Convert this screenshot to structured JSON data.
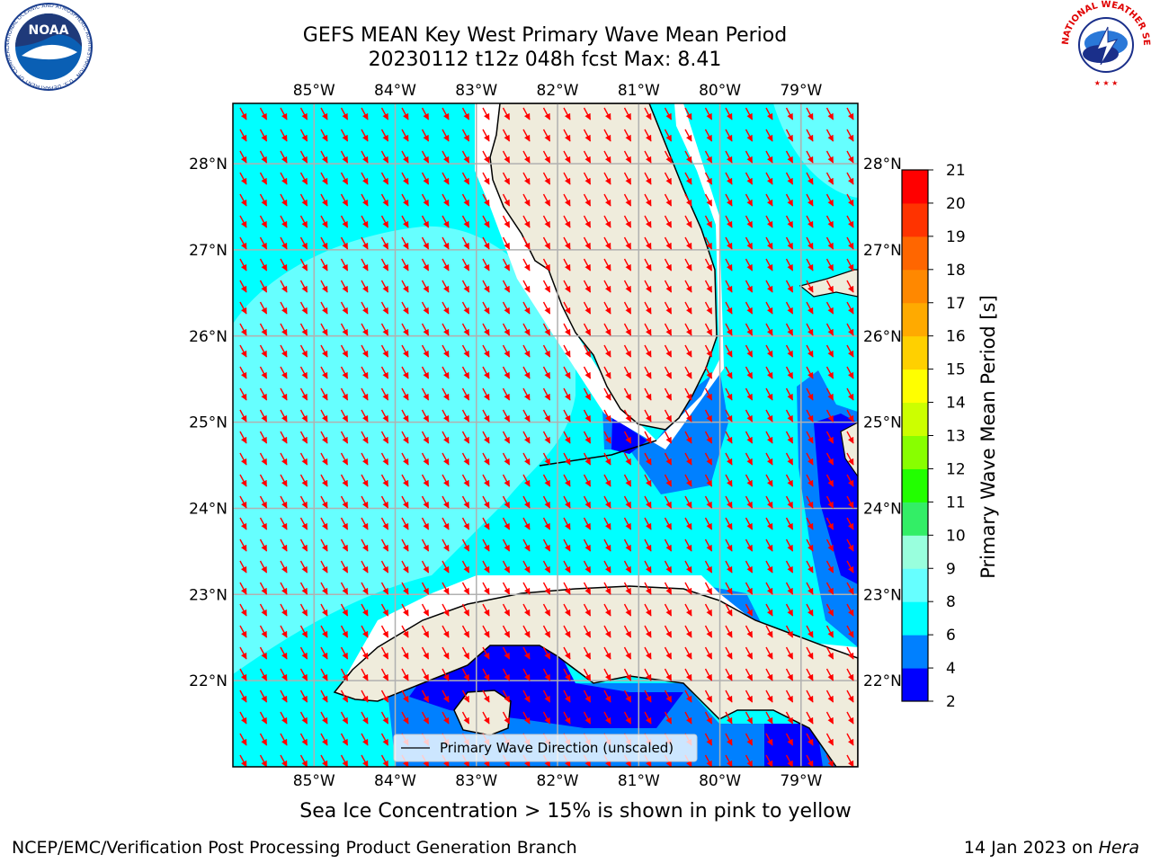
{
  "title": {
    "line1": "GEFS MEAN Key West Primary Wave Mean Period",
    "line2": "20230112 t12z 048h fcst   Max: 8.41"
  },
  "map": {
    "lon_ticks": [
      "85°W",
      "84°W",
      "83°W",
      "82°W",
      "81°W",
      "80°W",
      "79°W"
    ],
    "lat_ticks": [
      "28°N",
      "27°N",
      "26°N",
      "25°N",
      "24°N",
      "23°N",
      "22°N"
    ],
    "lon_range": [
      -86,
      -78.3
    ],
    "lat_range": [
      21,
      28.7
    ],
    "legend_label": "Primary Wave Direction (unscaled)",
    "arrow_color": "#ff0000",
    "land_color": "#efecdc",
    "grid_color": "#b0b0b0"
  },
  "colorbar": {
    "label": "Primary Wave Mean Period [s]",
    "ticks": [
      "2",
      "4",
      "6",
      "8",
      "9",
      "10",
      "11",
      "12",
      "13",
      "14",
      "15",
      "16",
      "17",
      "18",
      "19",
      "20",
      "21"
    ],
    "colors": [
      "#0000ff",
      "#0080ff",
      "#00ffff",
      "#66ffff",
      "#99ffdd",
      "#33ee66",
      "#22ff00",
      "#88ff00",
      "#ccff00",
      "#ffff00",
      "#ffd000",
      "#ffaa00",
      "#ff8800",
      "#ff6600",
      "#ff3300",
      "#ff0000"
    ]
  },
  "footer": {
    "sea_ice_note": "Sea Ice Concentration > 15% is shown in pink to yellow",
    "credit_left": "NCEP/EMC/Verification Post Processing Product Generation Branch",
    "credit_date": "14 Jan 2023 on ",
    "credit_machine": "Hera"
  },
  "logos": {
    "noaa_text": "NOAA",
    "noaa_ring_text": "NATIONAL OCEANIC AND ATMOSPHERIC ADMINISTRATION · U.S. DEPARTMENT OF COMMERCE",
    "nws_ring_text": "NATIONAL WEATHER SERVICE"
  }
}
